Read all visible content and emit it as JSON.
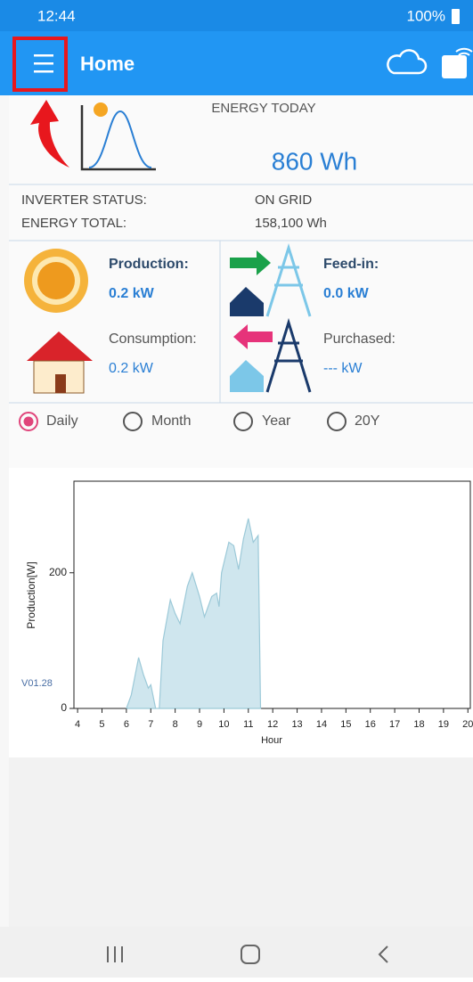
{
  "status_bar": {
    "time": "12:44",
    "battery": "100%"
  },
  "app_bar": {
    "title": "Home"
  },
  "energy_today": {
    "label": "ENERGY TODAY",
    "value": "860 Wh"
  },
  "status": {
    "inverter_label": "INVERTER STATUS:",
    "inverter_value": "ON GRID",
    "total_label": "ENERGY TOTAL:",
    "total_value": "158,100 Wh"
  },
  "tiles": {
    "production_label": "Production:",
    "production_value": "0.2 kW",
    "feedin_label": "Feed-in:",
    "feedin_value": "0.0 kW",
    "consumption_label": "Consumption:",
    "consumption_value": "0.2 kW",
    "purchased_label": "Purchased:",
    "purchased_value": "--- kW"
  },
  "periods": [
    "Daily",
    "Month",
    "Year",
    "20Y"
  ],
  "chart_data": {
    "type": "area",
    "y_label": "Production[W]",
    "x_label": "Hour",
    "annotation": "V01.28",
    "color": "#cfe6ee",
    "x": [
      6.0,
      6.2,
      6.5,
      6.7,
      6.9,
      7.0,
      7.2,
      7.35,
      7.5,
      7.8,
      8.0,
      8.2,
      8.5,
      8.7,
      9.0,
      9.2,
      9.5,
      9.7,
      9.8,
      9.9,
      10.2,
      10.4,
      10.6,
      10.8,
      11.0,
      11.2,
      11.4,
      11.5
    ],
    "values": [
      0,
      20,
      75,
      50,
      30,
      35,
      0,
      0,
      100,
      160,
      140,
      125,
      180,
      200,
      165,
      135,
      165,
      170,
      150,
      200,
      245,
      240,
      205,
      250,
      280,
      245,
      255,
      0
    ],
    "xlim": [
      3.85,
      20.1
    ],
    "ylim": [
      0,
      335
    ],
    "xticks": [
      4,
      5,
      6,
      7,
      8,
      9,
      10,
      11,
      12,
      13,
      14,
      15,
      16,
      17,
      18,
      19,
      20
    ],
    "yticks": [
      0,
      200
    ]
  }
}
